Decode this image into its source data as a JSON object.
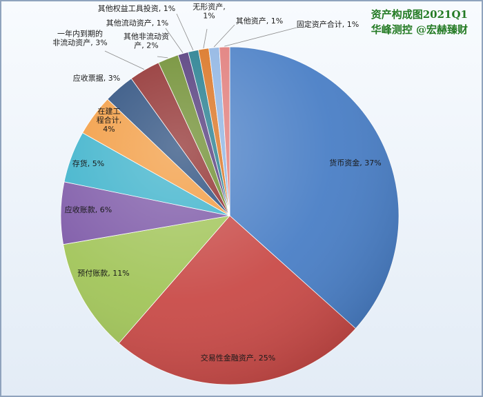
{
  "title_line1": "资产构成图2021Q1",
  "title_line2": "华峰测控 @宏赫臻财",
  "chart_data": {
    "type": "pie",
    "slices": [
      {
        "name": "货币资金",
        "value": 37,
        "label": "货币资金, 37%",
        "color": "#4a7fc6"
      },
      {
        "name": "交易性金融资产",
        "value": 25,
        "label": "交易性金融资产, 25%",
        "color": "#c94b48"
      },
      {
        "name": "预付账款",
        "value": 11,
        "label": "预付账款, 11%",
        "color": "#a2c55a"
      },
      {
        "name": "应收账款",
        "value": 6,
        "label": "应收账款, 6%",
        "color": "#7e5aa8"
      },
      {
        "name": "存货",
        "value": 5,
        "label": "存货, 5%",
        "color": "#3cb2cb"
      },
      {
        "name": "在建工程合计",
        "value": 4,
        "label": "在建工\n程合计,\n4%",
        "color": "#f29a3e"
      },
      {
        "name": "应收票据",
        "value": 3,
        "label": "应收票据, 3%",
        "color": "#25497a"
      },
      {
        "name": "一年内到期的非流动资产",
        "value": 3,
        "label": "一年内到期的\n非流动资产, 3%",
        "color": "#8d2929"
      },
      {
        "name": "其他非流动资产",
        "value": 2,
        "label": "其他非流动资\n产, 2%",
        "color": "#6a8a2a"
      },
      {
        "name": "其他流动资产",
        "value": 1,
        "label": "其他流动资产, 1%",
        "color": "#4e3578"
      },
      {
        "name": "其他权益工具投资",
        "value": 1,
        "label": "其他权益工具投资, 1%",
        "color": "#1f7a8c"
      },
      {
        "name": "无形资产",
        "value": 1,
        "label": "无形资产,\n1%",
        "color": "#d9701c"
      },
      {
        "name": "其他资产",
        "value": 1,
        "label": "其他资产, 1%",
        "color": "#8db3e2"
      },
      {
        "name": "固定资产合计",
        "value": 1,
        "label": "固定资产合计, 1%",
        "color": "#e07a78"
      }
    ]
  }
}
